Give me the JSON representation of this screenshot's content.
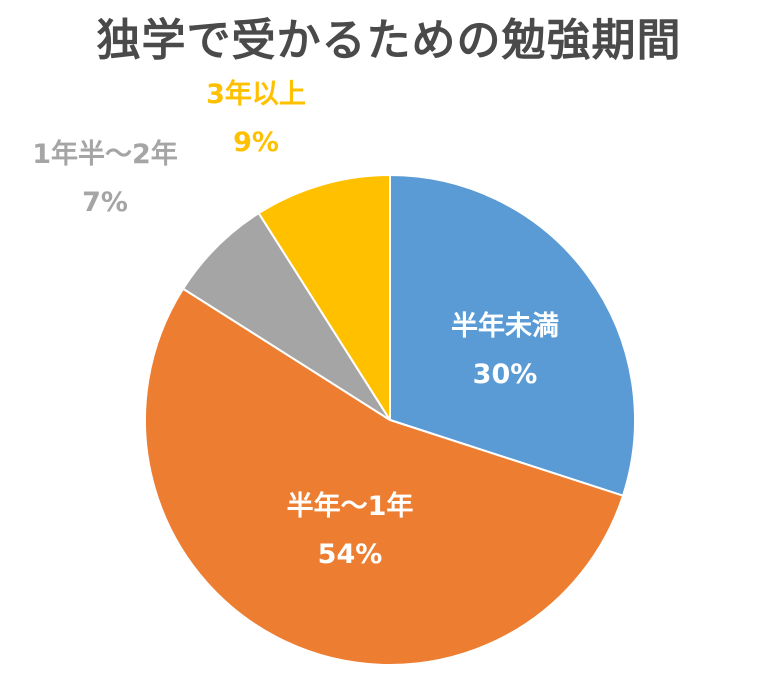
{
  "chart_data": {
    "type": "pie",
    "title": "独学で受かるための勉強期間",
    "categories": [
      "半年未満",
      "半年〜1年",
      "1年半〜2年",
      "3年以上"
    ],
    "values": [
      30,
      54,
      7,
      9
    ],
    "value_labels": [
      "30%",
      "54%",
      "7%",
      "9%"
    ],
    "colors": [
      "#5b9bd5",
      "#ed7d31",
      "#a5a5a5",
      "#ffc000"
    ],
    "label_colors": [
      "#ffffff",
      "#ffffff",
      "#a5a5a5",
      "#ffc000"
    ],
    "label_placement": [
      "inside",
      "inside",
      "outside",
      "outside"
    ],
    "start_angle_deg": 0,
    "direction": "clockwise",
    "legend": "none"
  }
}
